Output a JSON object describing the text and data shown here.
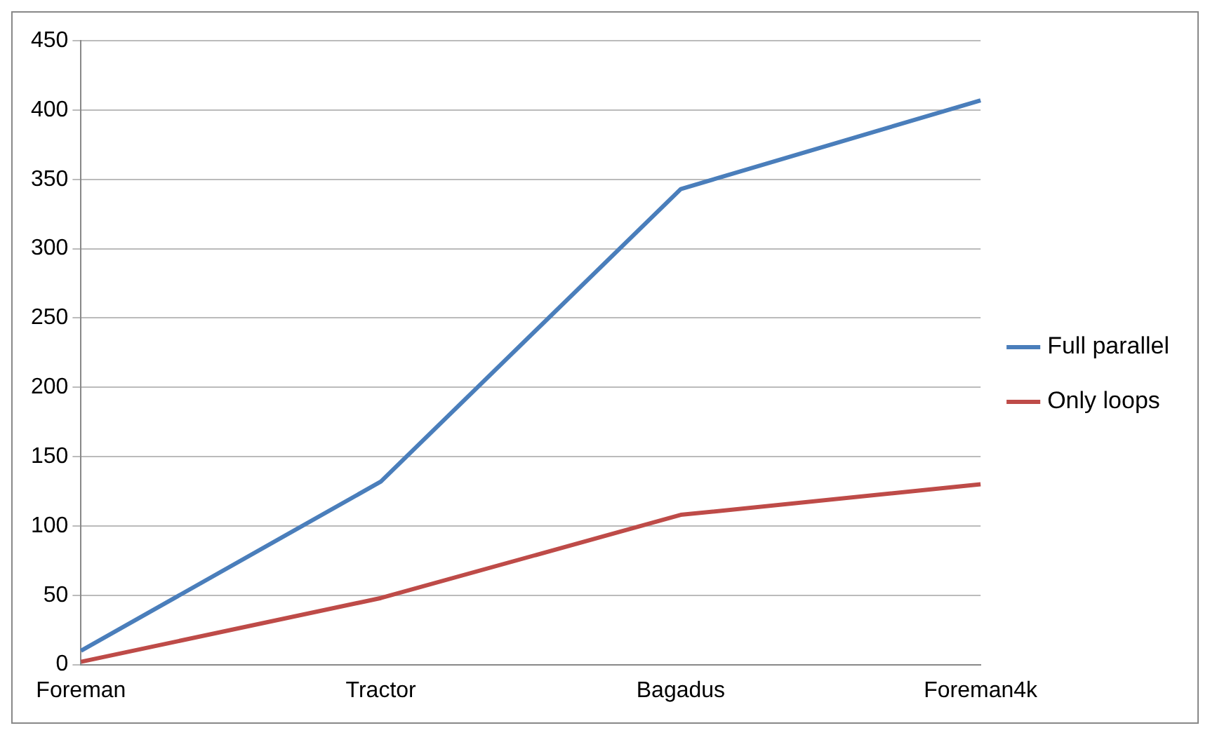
{
  "chart_data": {
    "type": "line",
    "categories": [
      "Foreman",
      "Tractor",
      "Bagadus",
      "Foreman4k"
    ],
    "series": [
      {
        "name": "Full parallel",
        "color": "#4a7ebb",
        "values": [
          10,
          132,
          343,
          407
        ]
      },
      {
        "name": "Only loops",
        "color": "#be4b48",
        "values": [
          2,
          48,
          108,
          130
        ]
      }
    ],
    "ylim": [
      0,
      450
    ],
    "yticks": [
      0,
      50,
      100,
      150,
      200,
      250,
      300,
      350,
      400,
      450
    ],
    "grid": "y",
    "legend": "right",
    "marker": "none",
    "line_style": "solid"
  }
}
